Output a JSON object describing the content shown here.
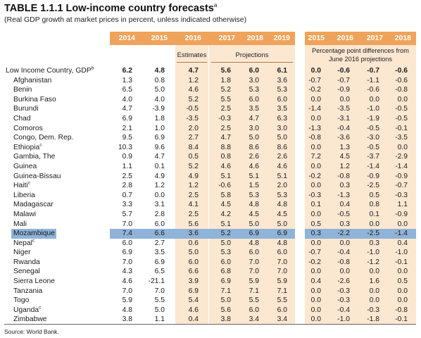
{
  "title": "TABLE 1.1.1 Low-income country forecasts",
  "title_note": "a",
  "subtitle": "(Real GDP growth at market prices in percent, unless indicated otherwise)",
  "columns_left": [
    "2014",
    "2015",
    "2016",
    "2017",
    "2018",
    "2019"
  ],
  "columns_right": [
    "2015",
    "2016",
    "2017",
    "2018"
  ],
  "estimates_label": "Estimates",
  "projections_label": "Projections",
  "diff_label_line1": "Percentage point differences from",
  "diff_label_line2": "June 2016 projections",
  "colors": {
    "header": "#f0a35a",
    "shade": "#fce7d1",
    "highlight": "#8fb3d9"
  },
  "rows": [
    {
      "name": "Low Income Country, GDP",
      "note": "b",
      "vals": [
        "6.2",
        "4.8",
        "4.7",
        "5.6",
        "6.0",
        "6.1"
      ],
      "diffs": [
        "0.0",
        "-0.6",
        "-0.7",
        "-0.6"
      ]
    },
    {
      "name": "Afghanistan",
      "note": "",
      "vals": [
        "1.3",
        "0.8",
        "1.2",
        "1.8",
        "3.0",
        "3.6"
      ],
      "diffs": [
        "-0.7",
        "-0.7",
        "-1.1",
        "-0.6"
      ]
    },
    {
      "name": "Benin",
      "note": "",
      "vals": [
        "6.5",
        "5.0",
        "4.6",
        "5.2",
        "5.3",
        "5.3"
      ],
      "diffs": [
        "-0.2",
        "-0.9",
        "-0.6",
        "-0.8"
      ]
    },
    {
      "name": "Burkina Faso",
      "note": "",
      "vals": [
        "4.0",
        "4.0",
        "5.2",
        "5.5",
        "6.0",
        "6.0"
      ],
      "diffs": [
        "0.0",
        "0.0",
        "0.0",
        "0.0"
      ]
    },
    {
      "name": "Burundi",
      "note": "",
      "vals": [
        "4.7",
        "-3.9",
        "-0.5",
        "2.5",
        "3.5",
        "3.5"
      ],
      "diffs": [
        "-1.4",
        "-3.5",
        "-1.0",
        "-0.5"
      ]
    },
    {
      "name": "Chad",
      "note": "",
      "vals": [
        "6.9",
        "1.8",
        "-3.5",
        "-0.3",
        "4.7",
        "6.3"
      ],
      "diffs": [
        "0.0",
        "-3.1",
        "-1.9",
        "-0.5"
      ]
    },
    {
      "name": "Comoros",
      "note": "",
      "vals": [
        "2.1",
        "1.0",
        "2.0",
        "2.5",
        "3.0",
        "3.0"
      ],
      "diffs": [
        "-1.3",
        "-0.4",
        "-0.5",
        "-0.1"
      ]
    },
    {
      "name": "Congo, Dem. Rep.",
      "note": "",
      "vals": [
        "9.5",
        "6.9",
        "2.7",
        "4.7",
        "5.0",
        "5.0"
      ],
      "diffs": [
        "-0.8",
        "-3.6",
        "-3.0",
        "-3.5"
      ]
    },
    {
      "name": "Ethiopia",
      "note": "c",
      "vals": [
        "10.3",
        "9.6",
        "8.4",
        "8.8",
        "8.6",
        "8.6"
      ],
      "diffs": [
        "0.0",
        "1.3",
        "-0.5",
        "0.0"
      ]
    },
    {
      "name": "Gambia, The",
      "note": "",
      "vals": [
        "0.9",
        "4.7",
        "0.5",
        "0.8",
        "2.6",
        "2.6"
      ],
      "diffs": [
        "7.2",
        "4.5",
        "-3.7",
        "-2.9"
      ]
    },
    {
      "name": "Guinea",
      "note": "",
      "vals": [
        "1.1",
        "0.1",
        "5.2",
        "4.6",
        "4.6",
        "4.6"
      ],
      "diffs": [
        "0.0",
        "1.2",
        "-1.4",
        "-1.4"
      ]
    },
    {
      "name": "Guinea-Bissau",
      "note": "",
      "vals": [
        "2.5",
        "4.9",
        "4.9",
        "5.1",
        "5.1",
        "5.1"
      ],
      "diffs": [
        "-0.2",
        "-0.8",
        "-0.9",
        "-0.9"
      ]
    },
    {
      "name": "Haiti",
      "note": "c",
      "vals": [
        "2.8",
        "1.2",
        "1.2",
        "-0.6",
        "1.5",
        "2.0"
      ],
      "diffs": [
        "0.0",
        "0.3",
        "-2.5",
        "-0.7"
      ]
    },
    {
      "name": "Liberia",
      "note": "",
      "vals": [
        "0.7",
        "0.0",
        "2.5",
        "5.8",
        "5.3",
        "5.3"
      ],
      "diffs": [
        "-0.3",
        "-1.3",
        "0.5",
        "-0.3"
      ]
    },
    {
      "name": "Madagascar",
      "note": "",
      "vals": [
        "3.3",
        "3.1",
        "4.1",
        "4.5",
        "4.8",
        "4.8"
      ],
      "diffs": [
        "0.1",
        "0.4",
        "0.8",
        "1.1"
      ]
    },
    {
      "name": "Malawi",
      "note": "",
      "vals": [
        "5.7",
        "2.8",
        "2.5",
        "4.2",
        "4.5",
        "4.5"
      ],
      "diffs": [
        "0.0",
        "-0.5",
        "0.1",
        "-0.9"
      ]
    },
    {
      "name": "Mali",
      "note": "",
      "vals": [
        "7.0",
        "6.0",
        "5.6",
        "5.1",
        "5.0",
        "5.0"
      ],
      "diffs": [
        "0.5",
        "0.3",
        "0.0",
        "0.0"
      ]
    },
    {
      "name": "Mozambique",
      "note": "",
      "vals": [
        "7.4",
        "6.6",
        "3.6",
        "5.2",
        "6.9",
        "6.9"
      ],
      "diffs": [
        "0.3",
        "-2.2",
        "-2.5",
        "-1.4"
      ],
      "highlight": true
    },
    {
      "name": "Nepal",
      "note": "c",
      "vals": [
        "6.0",
        "2.7",
        "0.6",
        "5.0",
        "4.8",
        "4.8"
      ],
      "diffs": [
        "0.0",
        "0.0",
        "0.3",
        "0.4"
      ]
    },
    {
      "name": "Niger",
      "note": "",
      "vals": [
        "6.9",
        "3.5",
        "5.0",
        "5.3",
        "6.0",
        "6.0"
      ],
      "diffs": [
        "-0.7",
        "-0.4",
        "-1.0",
        "-1.0"
      ]
    },
    {
      "name": "Rwanda",
      "note": "",
      "vals": [
        "7.0",
        "6.9",
        "6.0",
        "6.0",
        "7.0",
        "7.0"
      ],
      "diffs": [
        "-0.2",
        "-0.8",
        "-1.2",
        "-0.1"
      ]
    },
    {
      "name": "Senegal",
      "note": "",
      "vals": [
        "4.3",
        "6.5",
        "6.6",
        "6.8",
        "7.0",
        "7.0"
      ],
      "diffs": [
        "0.0",
        "0.0",
        "0.0",
        "0.0"
      ]
    },
    {
      "name": "Sierra Leone",
      "note": "",
      "vals": [
        "4.6",
        "-21.1",
        "3.9",
        "6.9",
        "5.9",
        "5.9"
      ],
      "diffs": [
        "0.4",
        "-2.6",
        "1.6",
        "0.5"
      ]
    },
    {
      "name": "Tanzania",
      "note": "",
      "vals": [
        "7.0",
        "7.0",
        "6.9",
        "7.1",
        "7.1",
        "7.1"
      ],
      "diffs": [
        "0.0",
        "-0.3",
        "0.0",
        "0.0"
      ]
    },
    {
      "name": "Togo",
      "note": "",
      "vals": [
        "5.9",
        "5.5",
        "5.4",
        "5.0",
        "5.5",
        "5.5"
      ],
      "diffs": [
        "0.0",
        "-0.3",
        "0.0",
        "0.0"
      ]
    },
    {
      "name": "Uganda",
      "note": "c",
      "vals": [
        "4.8",
        "5.0",
        "4.6",
        "5.6",
        "6.0",
        "6.0"
      ],
      "diffs": [
        "0.0",
        "-0.4",
        "-0.3",
        "-0.8"
      ]
    },
    {
      "name": "Zimbabwe",
      "note": "",
      "vals": [
        "3.8",
        "1.1",
        "0.4",
        "3.8",
        "3.4",
        "3.4"
      ],
      "diffs": [
        "0.0",
        "-1.0",
        "-1.8",
        "-0.1"
      ]
    }
  ],
  "source": "Source: World Bank."
}
